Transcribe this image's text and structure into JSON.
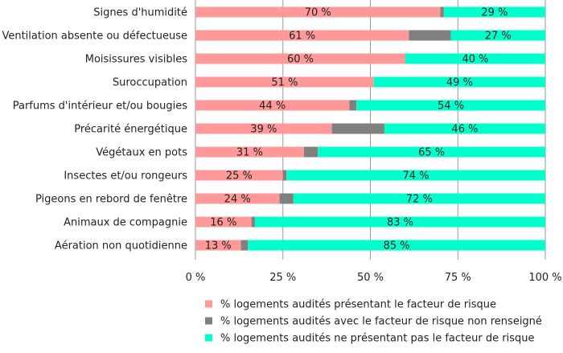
{
  "chart_data": {
    "type": "bar",
    "orientation": "horizontal",
    "stacked": true,
    "xlim": [
      0,
      100
    ],
    "x_ticks": [
      "0 %",
      "25 %",
      "50 %",
      "75 %",
      "100 %"
    ],
    "grid": true,
    "legend_position": "bottom",
    "categories": [
      "Signes d'humidité",
      "Ventilation absente ou défectueuse",
      "Moisissures visibles",
      "Suroccupation",
      "Parfums d'intérieur et/ou bougies",
      "Précarité énergétique",
      "Végétaux en pots",
      "Insectes et/ou rongeurs",
      "Pigeons en rebord de fenêtre",
      "Animaux de compagnie",
      "Aération non quotidienne"
    ],
    "series": [
      {
        "name": "% logements audités présentant le facteur de risque",
        "color": "#FF9999",
        "values": [
          70,
          61,
          60,
          51,
          44,
          39,
          31,
          25,
          24,
          16,
          13
        ],
        "labels": [
          "70 %",
          "61 %",
          "60 %",
          "51 %",
          "44 %",
          "39 %",
          "31 %",
          "25 %",
          "24 %",
          "16 %",
          "13 %"
        ]
      },
      {
        "name": "% logements audités avec le facteur de risque non renseigné",
        "color": "#808080",
        "values": [
          1,
          12,
          0,
          0,
          2,
          15,
          4,
          1,
          4,
          1,
          2
        ],
        "labels": []
      },
      {
        "name": "% logements audités ne présentant pas le facteur de risque",
        "color": "#00FFCC",
        "values": [
          29,
          27,
          40,
          49,
          54,
          46,
          65,
          74,
          72,
          83,
          85
        ],
        "labels": [
          "29 %",
          "27 %",
          "40 %",
          "49 %",
          "54 %",
          "46 %",
          "65 %",
          "74 %",
          "72 %",
          "83 %",
          "85 %"
        ]
      }
    ]
  }
}
